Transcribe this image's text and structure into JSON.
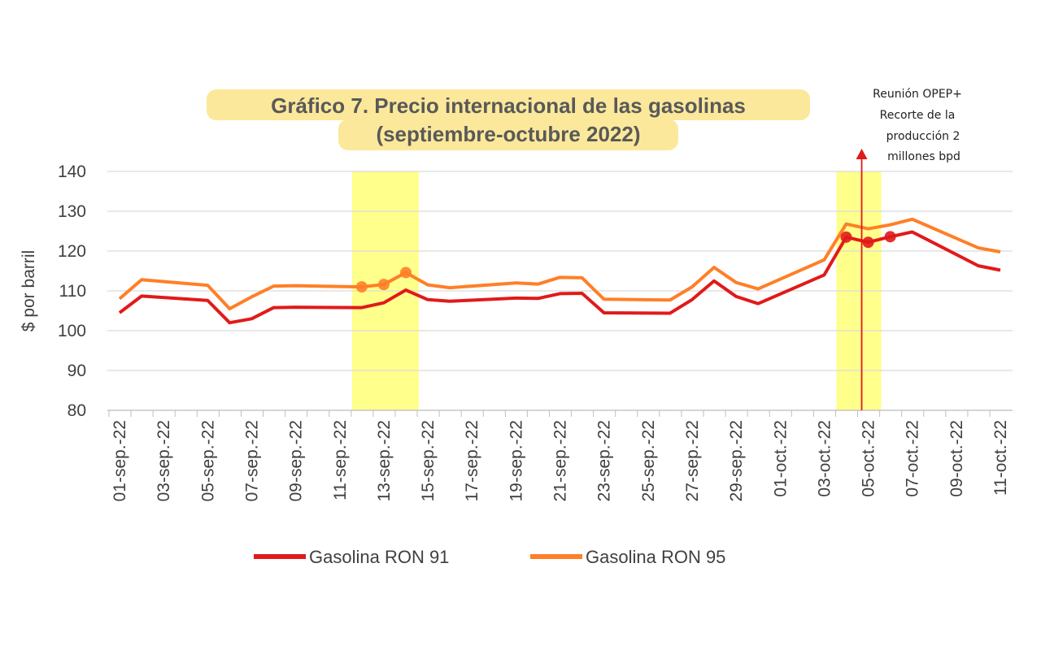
{
  "chart_data": {
    "type": "line",
    "title": "Gráfico 7. Precio internacional de las gasolinas",
    "subtitle": "(septiembre-octubre 2022)",
    "ylabel": "$ por barril",
    "xlabel": "",
    "ylim": [
      80,
      140
    ],
    "yticks": [
      80,
      90,
      100,
      110,
      120,
      130,
      140
    ],
    "grid": true,
    "legend_position": "bottom",
    "x": [
      "01-sep.-22",
      "02-sep.-22",
      "05-sep.-22",
      "06-sep.-22",
      "07-sep.-22",
      "08-sep.-22",
      "09-sep.-22",
      "12-sep.-22",
      "13-sep.-22",
      "14-sep.-22",
      "15-sep.-22",
      "16-sep.-22",
      "19-sep.-22",
      "20-sep.-22",
      "21-sep.-22",
      "22-sep.-22",
      "23-sep.-22",
      "26-sep.-22",
      "27-sep.-22",
      "28-sep.-22",
      "29-sep.-22",
      "30-sep.-22",
      "03-oct.-22",
      "04-oct.-22",
      "05-oct.-22",
      "06-oct.-22",
      "07-oct.-22",
      "10-oct.-22",
      "11-oct.-22"
    ],
    "x_dates": [
      "2022-09-01",
      "2022-09-02",
      "2022-09-05",
      "2022-09-06",
      "2022-09-07",
      "2022-09-08",
      "2022-09-09",
      "2022-09-12",
      "2022-09-13",
      "2022-09-14",
      "2022-09-15",
      "2022-09-16",
      "2022-09-19",
      "2022-09-20",
      "2022-09-21",
      "2022-09-22",
      "2022-09-23",
      "2022-09-26",
      "2022-09-27",
      "2022-09-28",
      "2022-09-29",
      "2022-09-30",
      "2022-10-03",
      "2022-10-04",
      "2022-10-05",
      "2022-10-06",
      "2022-10-07",
      "2022-10-10",
      "2022-10-11"
    ],
    "x_tick_labels": [
      "01-sep.-22",
      "03-sep.-22",
      "05-sep.-22",
      "07-sep.-22",
      "09-sep.-22",
      "11-sep.-22",
      "13-sep.-22",
      "15-sep.-22",
      "17-sep.-22",
      "19-sep.-22",
      "21-sep.-22",
      "23-sep.-22",
      "25-sep.-22",
      "27-sep.-22",
      "29-sep.-22",
      "01-oct.-22",
      "03-oct.-22",
      "05-oct.-22",
      "07-oct.-22",
      "09-oct.-22",
      "11-oct.-22"
    ],
    "series": [
      {
        "name": "Gasolina RON 91",
        "color": "#e11a1a",
        "values": [
          104.5,
          108.7,
          107.6,
          102.0,
          103.0,
          105.8,
          105.9,
          105.8,
          107.0,
          110.2,
          107.8,
          107.4,
          108.2,
          108.1,
          109.3,
          109.4,
          104.5,
          104.4,
          107.8,
          112.5,
          108.6,
          106.8,
          114.0,
          123.5,
          122.2,
          123.6,
          124.8,
          116.3,
          115.2
        ],
        "highlight_points": [
          "04-oct.-22",
          "05-oct.-22",
          "06-oct.-22"
        ]
      },
      {
        "name": "Gasolina RON 95",
        "color": "#ff7f27",
        "values": [
          108.0,
          112.8,
          111.4,
          105.5,
          108.5,
          111.2,
          111.3,
          111.0,
          111.6,
          114.6,
          111.5,
          110.8,
          112.0,
          111.7,
          113.4,
          113.3,
          107.9,
          107.7,
          111.0,
          115.9,
          112.1,
          110.5,
          117.8,
          126.8,
          125.6,
          126.6,
          128.0,
          120.8,
          119.8
        ],
        "highlight_points": [
          "12-sep.-22",
          "13-sep.-22",
          "14-sep.-22"
        ]
      }
    ],
    "highlight_bands": [
      {
        "from": "2022-09-12",
        "to": "2022-09-14",
        "color": "#ffff66"
      },
      {
        "from": "2022-10-04",
        "to": "2022-10-05",
        "color": "#ffff66"
      }
    ],
    "annotation": {
      "date": "2022-10-05",
      "color": "#e11a1a",
      "lines": [
        "Reunión OPEP+",
        "Recorte de la",
        "producción 2",
        "millones bpd"
      ]
    },
    "colors": {
      "title_highlight": "#fbe89a",
      "grid": "#d9d9d9",
      "text": "#404040"
    }
  }
}
